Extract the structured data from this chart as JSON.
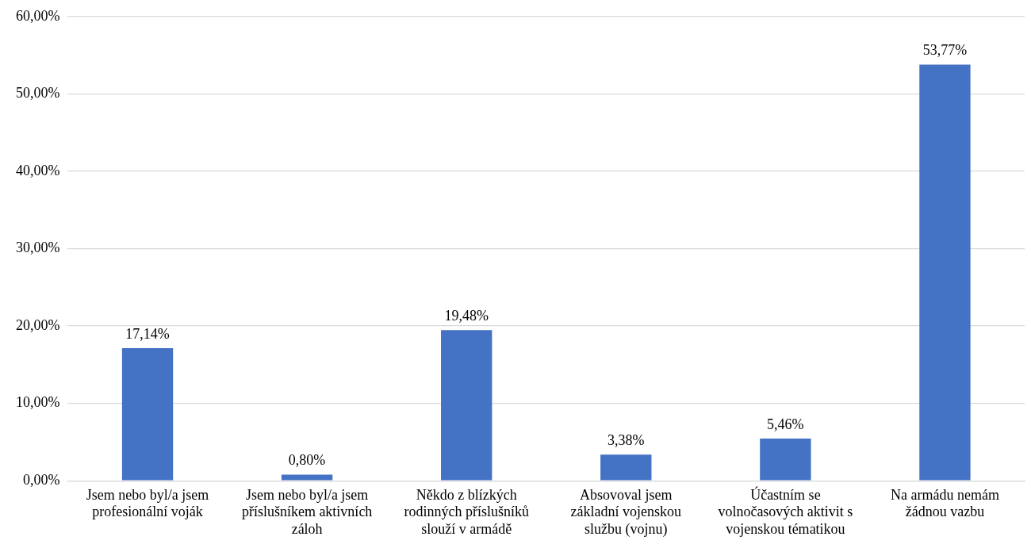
{
  "chart_data": {
    "type": "bar",
    "categories": [
      "Jsem nebo byl/a jsem profesionální voják",
      "Jsem nebo byl/a jsem příslušníkem aktivních záloh",
      "Někdo z blízkých rodinných příslušníků slouží v armádě",
      "Absovoval jsem základní vojenskou službu (vojnu)",
      "Účastním se volnočasových aktivit s vojenskou tématikou",
      "Na armádu nemám žádnou vazbu"
    ],
    "values": [
      17.14,
      0.8,
      19.48,
      3.38,
      5.46,
      53.77
    ],
    "value_labels": [
      "17,14%",
      "0,80%",
      "19,48%",
      "3,38%",
      "5,46%",
      "53,77%"
    ],
    "color": "#4472c4",
    "ylim": [
      0,
      60
    ],
    "yticks": [
      {
        "value": 0,
        "label": "0,00%"
      },
      {
        "value": 10,
        "label": "10,00%"
      },
      {
        "value": 20,
        "label": "20,00%"
      },
      {
        "value": 30,
        "label": "30,00%"
      },
      {
        "value": 40,
        "label": "40,00%"
      },
      {
        "value": 50,
        "label": "50,00%"
      },
      {
        "value": 60,
        "label": "60,00%"
      }
    ],
    "grid": "y",
    "legend": false
  }
}
